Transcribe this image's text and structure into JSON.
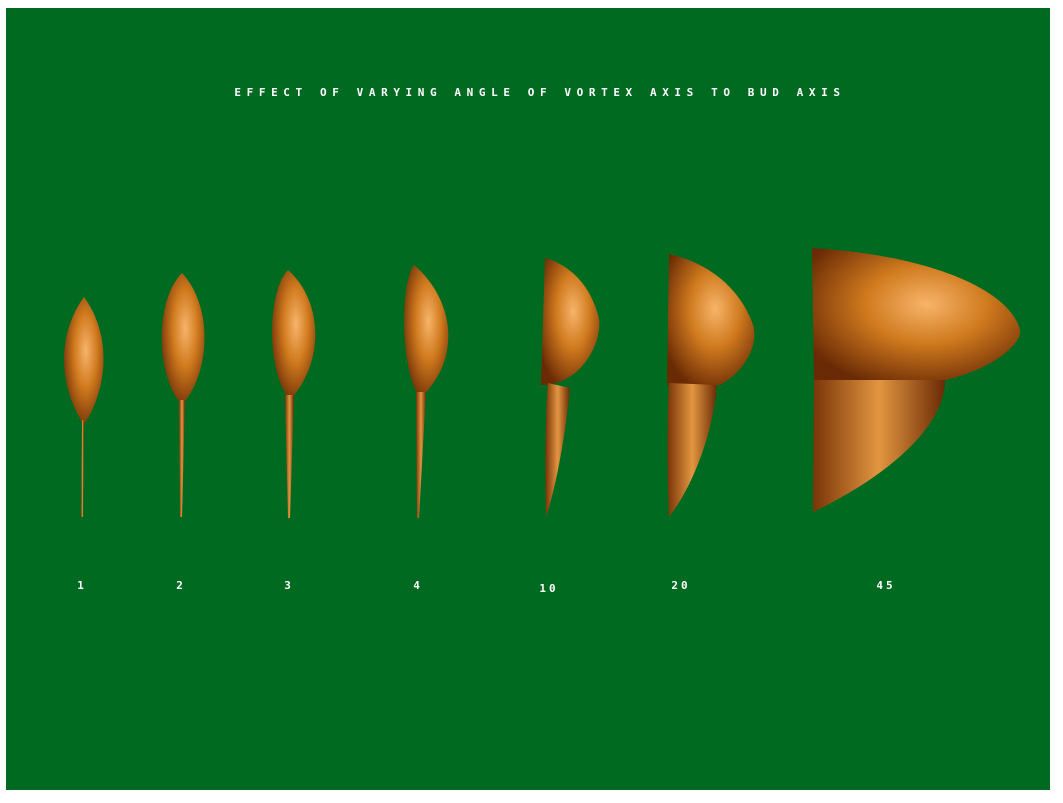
{
  "title": "EFFECT OF VARYING ANGLE OF VORTEX AXIS TO BUD AXIS",
  "labels": [
    "1",
    "2",
    "3",
    "4",
    "10",
    "20",
    "45"
  ]
}
